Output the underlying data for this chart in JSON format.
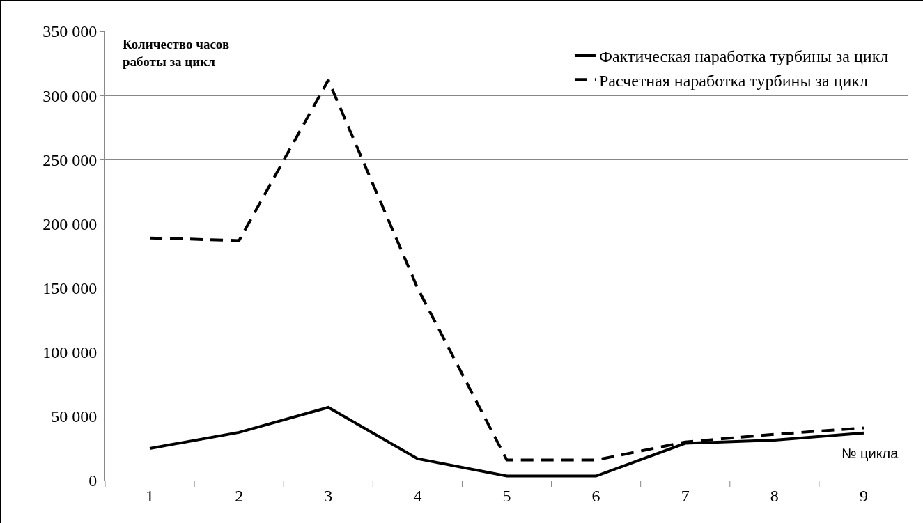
{
  "chart_data": {
    "type": "line",
    "categories": [
      "1",
      "2",
      "3",
      "4",
      "5",
      "6",
      "7",
      "8",
      "9"
    ],
    "series": [
      {
        "name": "Фактическая наработка турбины за цикл",
        "color": "#000000",
        "line_style": "solid",
        "values": [
          25000,
          37500,
          57000,
          17000,
          3500,
          3500,
          29000,
          31500,
          37000
        ]
      },
      {
        "name": "Расчетная наработка турбины за цикл",
        "color": "#000000",
        "line_style": "dashed",
        "values": [
          189000,
          187000,
          312000,
          150000,
          16000,
          16000,
          30000,
          36000,
          41000
        ]
      }
    ],
    "ylim": [
      0,
      350000
    ],
    "yticks": [
      {
        "value": 0,
        "label": "0"
      },
      {
        "value": 50000,
        "label": "50 000"
      },
      {
        "value": 100000,
        "label": "100 000"
      },
      {
        "value": 150000,
        "label": "150 000"
      },
      {
        "value": 200000,
        "label": "200 000"
      },
      {
        "value": 250000,
        "label": "250 000"
      },
      {
        "value": 300000,
        "label": "300 000"
      },
      {
        "value": 350000,
        "label": "350 000"
      }
    ],
    "annotations": [
      "Количество часов работы за цикл",
      "№ цикла"
    ],
    "grid": "y",
    "legend": "top right",
    "marker": "none"
  }
}
